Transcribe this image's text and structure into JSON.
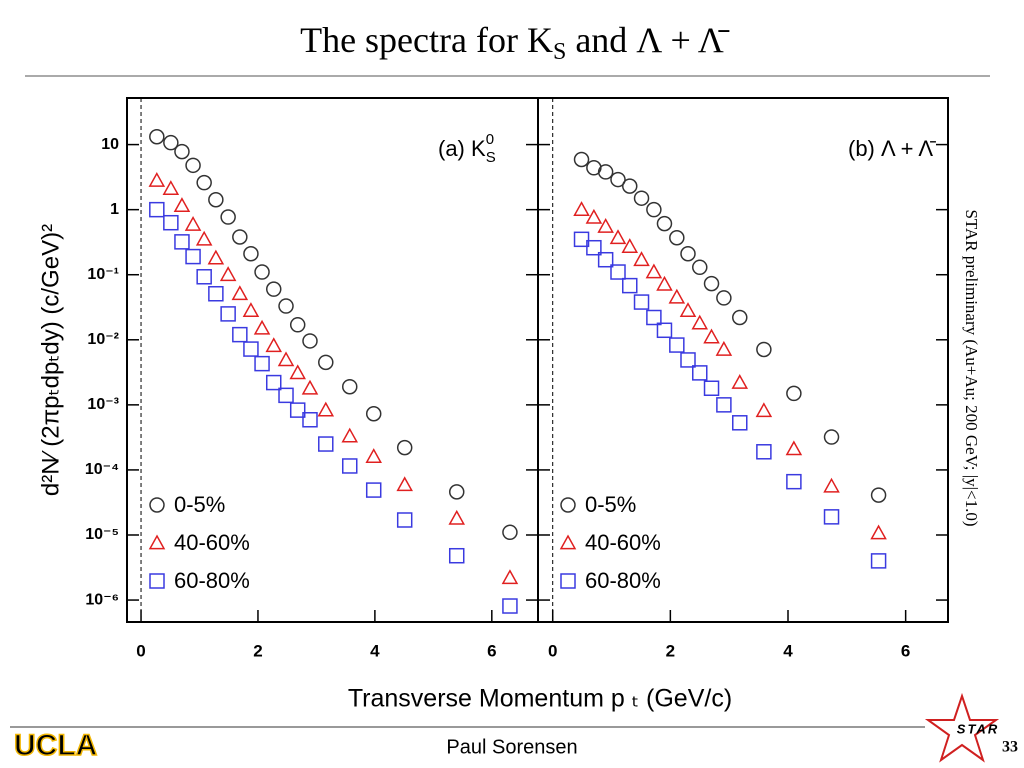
{
  "title": {
    "main": "The spectra for K",
    "sub": "S",
    "rest": " and Λ + Λ̄"
  },
  "xlabel": "Transverse Momentum p ₜ (GeV/c)",
  "side_note": "STAR preliminary (Au+Au; 200 GeV; |y|<1.0)",
  "footer": {
    "logo": "UCLA",
    "author": "Paul Sorensen",
    "page": "33",
    "star_logo": "STAR"
  },
  "chart_data": [
    {
      "type": "scatter",
      "annotation": {
        "main": "(a) K",
        "sub": "S",
        "sup": "0"
      },
      "ylabel": "d²N⁄ (2πpₜdpₜdy) (c/GeV)²",
      "log_y": true,
      "legend": "lower left",
      "xlim": [
        -0.24,
        6.79
      ],
      "ylim": [
        4.6e-07,
        52
      ],
      "xticks": [
        0,
        2,
        4,
        6
      ],
      "yticks": [
        {
          "value": 10,
          "label": "10"
        },
        {
          "value": 1,
          "label": "1"
        },
        {
          "value": 0.1,
          "label": "10⁻¹"
        },
        {
          "value": 0.01,
          "label": "10⁻²"
        },
        {
          "value": 0.001,
          "label": "10⁻³"
        },
        {
          "value": 0.0001,
          "label": "10⁻⁴"
        },
        {
          "value": 1e-05,
          "label": "10⁻⁵"
        },
        {
          "value": 1e-06,
          "label": "10⁻⁶"
        }
      ],
      "x": [
        0.27,
        0.51,
        0.7,
        0.89,
        1.08,
        1.28,
        1.49,
        1.69,
        1.88,
        2.07,
        2.27,
        2.48,
        2.68,
        2.89,
        3.16,
        3.57,
        3.98,
        4.51,
        5.4,
        6.31
      ],
      "series": [
        {
          "name": "0-5%",
          "marker": "circle",
          "color": "#333333",
          "values": [
            13.2,
            10.7,
            7.8,
            4.8,
            2.6,
            1.42,
            0.77,
            0.38,
            0.21,
            0.11,
            0.06,
            0.033,
            0.017,
            0.0096,
            0.0045,
            0.0019,
            0.00073,
            0.00022,
            4.6e-05,
            1.1e-05
          ]
        },
        {
          "name": "40-60%",
          "marker": "triangle",
          "color": "#e02020",
          "values": [
            2.8,
            2.1,
            1.15,
            0.59,
            0.35,
            0.18,
            0.1,
            0.051,
            0.028,
            0.015,
            0.0081,
            0.0049,
            0.0031,
            0.0018,
            0.00083,
            0.00033,
            0.00016,
            5.9e-05,
            1.8e-05,
            2.2e-06
          ]
        },
        {
          "name": "60-80%",
          "marker": "square",
          "color": "#3a3ae0",
          "values": [
            1.0,
            0.63,
            0.32,
            0.19,
            0.093,
            0.051,
            0.025,
            0.012,
            0.0072,
            0.0043,
            0.0022,
            0.0014,
            0.00083,
            0.00059,
            0.00025,
            0.000115,
            4.9e-05,
            1.7e-05,
            4.8e-06,
            8.1e-07
          ]
        }
      ]
    },
    {
      "type": "scatter",
      "annotation": {
        "main": "(b) Λ + Λ̄"
      },
      "log_y": true,
      "legend": "lower left",
      "xlim": [
        -0.25,
        6.72
      ],
      "ylim": [
        4.6e-07,
        52
      ],
      "xticks": [
        0,
        2,
        4,
        6
      ],
      "x": [
        0.49,
        0.7,
        0.9,
        1.11,
        1.31,
        1.51,
        1.72,
        1.9,
        2.11,
        2.3,
        2.5,
        2.7,
        2.91,
        3.18,
        3.59,
        4.1,
        4.74,
        5.54
      ],
      "series": [
        {
          "name": "0-5%",
          "marker": "circle",
          "color": "#333333",
          "values": [
            5.9,
            4.4,
            3.8,
            2.9,
            2.3,
            1.5,
            1.0,
            0.61,
            0.37,
            0.21,
            0.13,
            0.073,
            0.044,
            0.022,
            0.0071,
            0.0015,
            0.00032,
            4.1e-05
          ]
        },
        {
          "name": "40-60%",
          "marker": "triangle",
          "color": "#e02020",
          "values": [
            1.0,
            0.76,
            0.55,
            0.37,
            0.27,
            0.17,
            0.11,
            0.071,
            0.045,
            0.028,
            0.018,
            0.011,
            0.0071,
            0.0022,
            0.00081,
            0.00021,
            5.6e-05,
            1.07e-05
          ]
        },
        {
          "name": "60-80%",
          "marker": "square",
          "color": "#3a3ae0",
          "values": [
            0.35,
            0.26,
            0.17,
            0.11,
            0.068,
            0.038,
            0.022,
            0.014,
            0.0083,
            0.0049,
            0.0031,
            0.0018,
            0.001,
            0.00053,
            0.00019,
            6.6e-05,
            1.9e-05,
            4e-06
          ]
        }
      ]
    }
  ]
}
